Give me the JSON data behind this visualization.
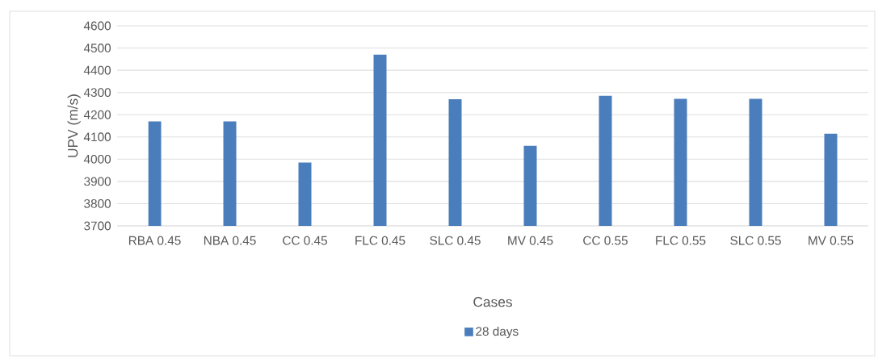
{
  "chart_data": {
    "type": "bar",
    "categories": [
      "RBA 0.45",
      "NBA 0.45",
      "CC 0.45",
      "FLC 0.45",
      "SLC 0.45",
      "MV 0.45",
      "CC 0.55",
      "FLC 0.55",
      "SLC 0.55",
      "MV 0.55"
    ],
    "series": [
      {
        "name": "28 days",
        "color": "#4a7dbb",
        "values": [
          4170,
          4170,
          3985,
          4470,
          4270,
          4060,
          4285,
          4272,
          4272,
          4115
        ]
      }
    ],
    "xlabel": "Cases",
    "ylabel": "UPV (m/s)",
    "ylim": [
      3700,
      4600
    ],
    "yticks": [
      3700,
      3800,
      3900,
      4000,
      4100,
      4200,
      4300,
      4400,
      4500,
      4600
    ],
    "grid": "y",
    "legend": "bottom"
  }
}
